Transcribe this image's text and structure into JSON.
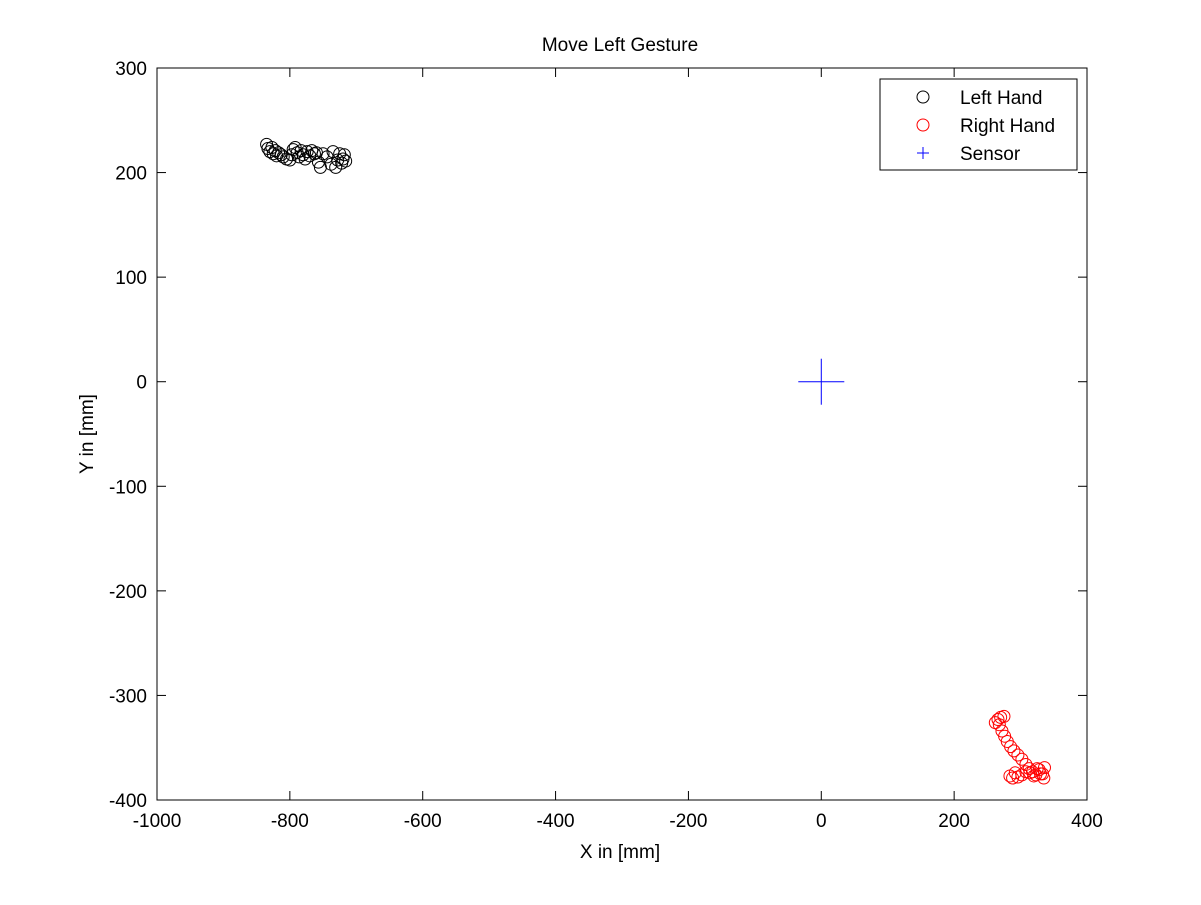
{
  "chart_data": {
    "type": "scatter",
    "title": "Move Left Gesture",
    "xlabel": "X in [mm]",
    "ylabel": "Y in [mm]",
    "xlim": [
      -1000,
      400
    ],
    "ylim": [
      -400,
      300
    ],
    "xticks": [
      -1000,
      -800,
      -600,
      -400,
      -200,
      0,
      200,
      400
    ],
    "yticks": [
      -400,
      -300,
      -200,
      -100,
      0,
      100,
      200,
      300
    ],
    "xtick_labels": [
      "-1000",
      "-800",
      "-600",
      "-400",
      "-200",
      "0",
      "200",
      "400"
    ],
    "ytick_labels": [
      "-400",
      "-300",
      "-200",
      "-100",
      "0",
      "100",
      "200",
      "300"
    ],
    "grid": false,
    "legend_position": "top-right",
    "series": [
      {
        "name": "Left Hand",
        "marker": "circle",
        "color": "#000000",
        "points": [
          [
            -835,
            227
          ],
          [
            -833,
            223
          ],
          [
            -830,
            220
          ],
          [
            -827,
            224
          ],
          [
            -825,
            218
          ],
          [
            -822,
            221
          ],
          [
            -820,
            216
          ],
          [
            -817,
            219
          ],
          [
            -813,
            217
          ],
          [
            -810,
            215
          ],
          [
            -805,
            213
          ],
          [
            -800,
            212
          ],
          [
            -797,
            217
          ],
          [
            -795,
            222
          ],
          [
            -792,
            224
          ],
          [
            -789,
            219
          ],
          [
            -786,
            215
          ],
          [
            -783,
            221
          ],
          [
            -780,
            217
          ],
          [
            -777,
            213
          ],
          [
            -774,
            220
          ],
          [
            -770,
            216
          ],
          [
            -767,
            221
          ],
          [
            -763,
            218
          ],
          [
            -760,
            219
          ],
          [
            -757,
            210
          ],
          [
            -754,
            205
          ],
          [
            -750,
            218
          ],
          [
            -744,
            215
          ],
          [
            -738,
            208
          ],
          [
            -735,
            220
          ],
          [
            -731,
            205
          ],
          [
            -728,
            212
          ],
          [
            -725,
            218
          ],
          [
            -722,
            209
          ],
          [
            -720,
            213
          ],
          [
            -718,
            217
          ],
          [
            -716,
            211
          ]
        ]
      },
      {
        "name": "Right Hand",
        "marker": "circle",
        "color": "#ff0000",
        "points": [
          [
            262,
            -326
          ],
          [
            266,
            -323
          ],
          [
            270,
            -321
          ],
          [
            275,
            -320
          ],
          [
            268,
            -328
          ],
          [
            272,
            -334
          ],
          [
            276,
            -339
          ],
          [
            280,
            -344
          ],
          [
            285,
            -349
          ],
          [
            290,
            -353
          ],
          [
            296,
            -357
          ],
          [
            302,
            -361
          ],
          [
            308,
            -366
          ],
          [
            313,
            -370
          ],
          [
            318,
            -373
          ],
          [
            323,
            -376
          ],
          [
            328,
            -371
          ],
          [
            333,
            -375
          ],
          [
            335,
            -379
          ],
          [
            336,
            -369
          ],
          [
            330,
            -375
          ],
          [
            325,
            -370
          ],
          [
            320,
            -377
          ],
          [
            314,
            -374
          ],
          [
            308,
            -373
          ],
          [
            302,
            -376
          ],
          [
            296,
            -378
          ],
          [
            292,
            -374
          ],
          [
            288,
            -379
          ],
          [
            284,
            -377
          ]
        ]
      },
      {
        "name": "Sensor",
        "marker": "plus",
        "color": "#0000ff",
        "points": [
          [
            0,
            0
          ]
        ]
      }
    ]
  }
}
